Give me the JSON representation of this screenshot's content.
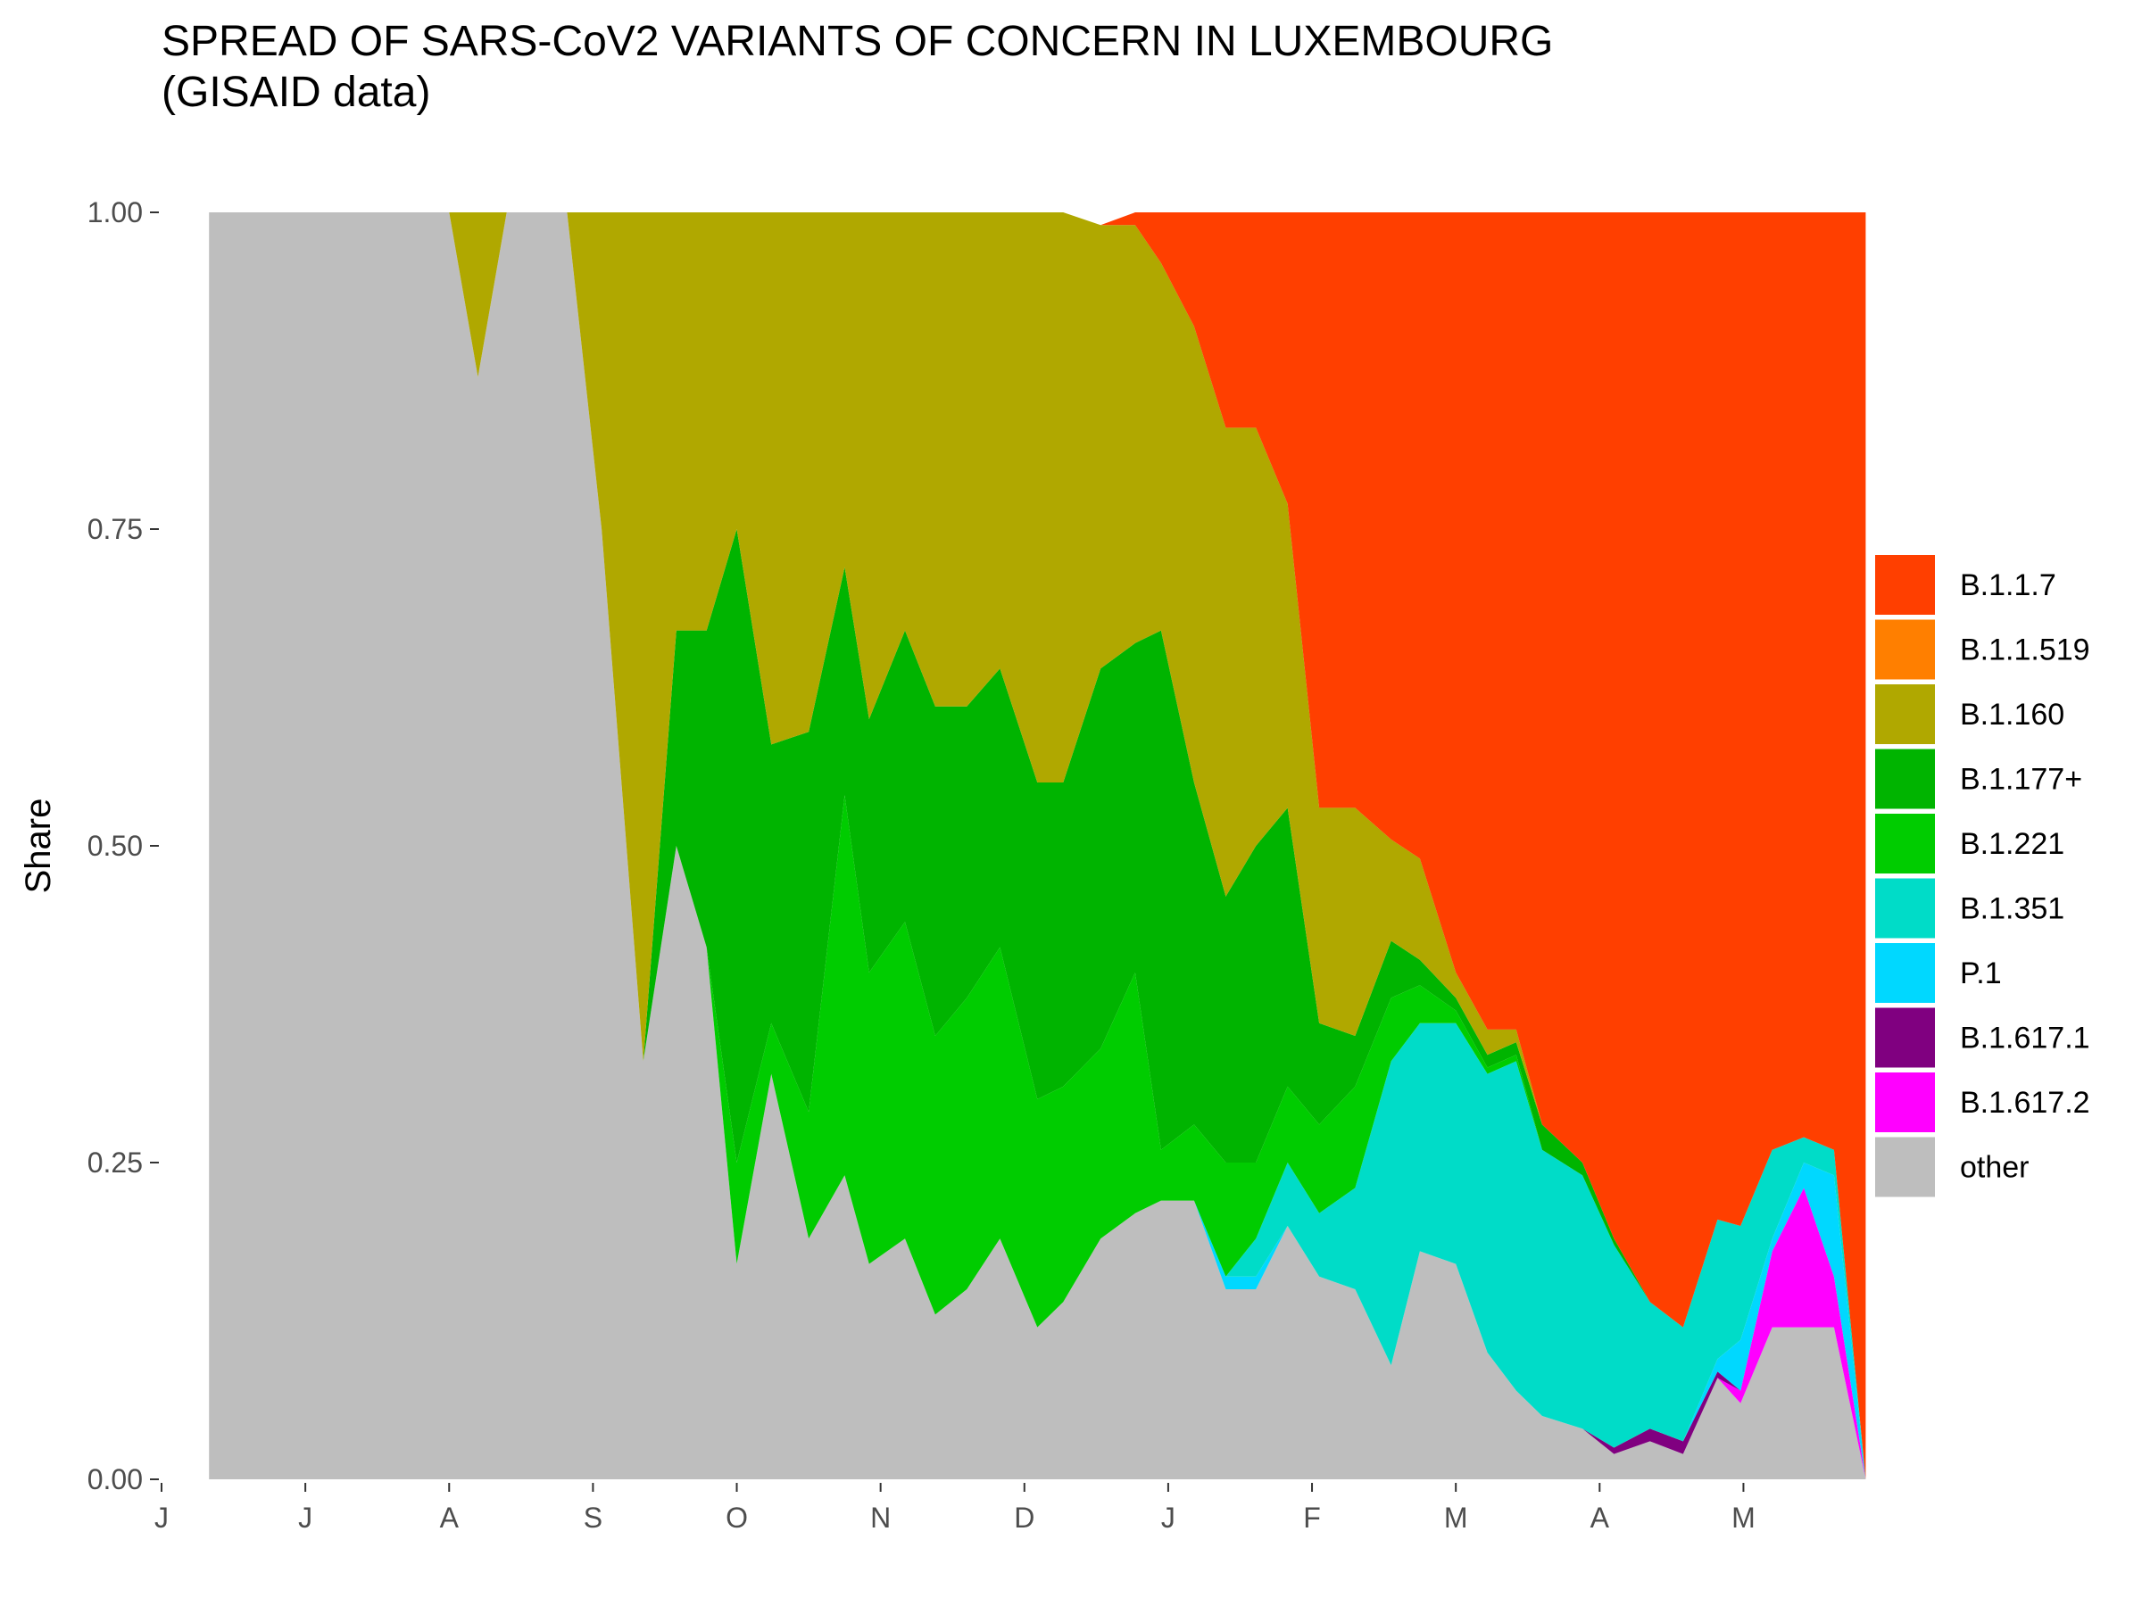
{
  "title_line1": "SPREAD OF SARS-CoV2 VARIANTS OF CONCERN IN LUXEMBOURG",
  "title_line2": "(GISAID data)",
  "chart_data": {
    "type": "area",
    "stacked": true,
    "normalized": true,
    "title": "SPREAD OF SARS-CoV2 VARIANTS OF CONCERN IN LUXEMBOURG (GISAID data)",
    "xlabel": "",
    "ylabel": "Share",
    "ylim": [
      0,
      1
    ],
    "xlim": [
      0,
      11.5
    ],
    "y_ticks": [
      {
        "value": 0.0,
        "label": "0.00"
      },
      {
        "value": 0.25,
        "label": "0.25"
      },
      {
        "value": 0.5,
        "label": "0.50"
      },
      {
        "value": 0.75,
        "label": "0.75"
      },
      {
        "value": 1.0,
        "label": "1.00"
      }
    ],
    "x_ticks": [
      {
        "value": 0,
        "label": "J"
      },
      {
        "value": 1,
        "label": "J"
      },
      {
        "value": 2,
        "label": "A"
      },
      {
        "value": 3,
        "label": "S"
      },
      {
        "value": 4,
        "label": "O"
      },
      {
        "value": 5,
        "label": "N"
      },
      {
        "value": 6,
        "label": "D"
      },
      {
        "value": 7,
        "label": "J"
      },
      {
        "value": 8,
        "label": "F"
      },
      {
        "value": 9,
        "label": "M"
      },
      {
        "value": 10,
        "label": "A"
      },
      {
        "value": 11,
        "label": "M"
      }
    ],
    "x": [
      0.33,
      2.0,
      2.2,
      2.4,
      2.82,
      3.06,
      3.35,
      3.58,
      3.79,
      4.0,
      4.24,
      4.5,
      4.75,
      4.92,
      5.17,
      5.38,
      5.6,
      5.83,
      6.09,
      6.27,
      6.53,
      6.77,
      6.95,
      7.18,
      7.4,
      7.61,
      7.83,
      8.05,
      8.3,
      8.55,
      8.75,
      9.0,
      9.22,
      9.42,
      9.6,
      9.88,
      10.1,
      10.35,
      10.58,
      10.82,
      10.98,
      11.2,
      11.42,
      11.63,
      11.85
    ],
    "series": [
      {
        "name": "other",
        "color": "#bebebe",
        "values": [
          1,
          1,
          0.87,
          1,
          1,
          0.75,
          0.33,
          0.5,
          0.42,
          0.17,
          0.32,
          0.19,
          0.24,
          0.17,
          0.19,
          0.13,
          0.15,
          0.19,
          0.12,
          0.14,
          0.19,
          0.21,
          0.22,
          0.22,
          0.15,
          0.15,
          0.2,
          0.16,
          0.15,
          0.09,
          0.18,
          0.17,
          0.1,
          0.07,
          0.05,
          0.04,
          0.02,
          0.03,
          0.02,
          0.08,
          0.06,
          0.12,
          0.12,
          0.12,
          0.0
        ]
      },
      {
        "name": "B.1.617.2",
        "color": "#ff00ff",
        "values": [
          0,
          0,
          0,
          0,
          0,
          0,
          0,
          0,
          0,
          0,
          0,
          0,
          0,
          0,
          0,
          0,
          0,
          0,
          0,
          0,
          0,
          0,
          0,
          0,
          0,
          0,
          0,
          0,
          0,
          0,
          0,
          0,
          0,
          0,
          0,
          0,
          0,
          0,
          0,
          0,
          0.01,
          0.06,
          0.11,
          0.04,
          0.0
        ]
      },
      {
        "name": "B.1.617.1",
        "color": "#800080",
        "values": [
          0,
          0,
          0,
          0,
          0,
          0,
          0,
          0,
          0,
          0,
          0,
          0,
          0,
          0,
          0,
          0,
          0,
          0,
          0,
          0,
          0,
          0,
          0,
          0,
          0,
          0,
          0,
          0,
          0,
          0,
          0,
          0,
          0,
          0,
          0,
          0,
          0.005,
          0.01,
          0.01,
          0.005,
          0.0,
          0.0,
          0.0,
          0.0,
          0.0
        ]
      },
      {
        "name": "P.1",
        "color": "#00d8ff",
        "values": [
          0,
          0,
          0,
          0,
          0,
          0,
          0,
          0,
          0,
          0,
          0,
          0,
          0,
          0,
          0,
          0,
          0,
          0,
          0,
          0,
          0,
          0,
          0,
          0,
          0.01,
          0.01,
          0,
          0,
          0,
          0,
          0,
          0,
          0,
          0,
          0,
          0,
          0,
          0,
          0,
          0.01,
          0.04,
          0.01,
          0.02,
          0.08,
          0.0
        ]
      },
      {
        "name": "B.1.351",
        "color": "#00dcc8",
        "values": [
          0,
          0,
          0,
          0,
          0,
          0,
          0,
          0,
          0,
          0,
          0,
          0,
          0,
          0,
          0,
          0,
          0,
          0,
          0,
          0,
          0,
          0,
          0,
          0,
          0.0,
          0.03,
          0.05,
          0.05,
          0.08,
          0.24,
          0.18,
          0.19,
          0.22,
          0.26,
          0.21,
          0.2,
          0.16,
          0.1,
          0.09,
          0.11,
          0.09,
          0.07,
          0.02,
          0.02,
          0.0
        ]
      },
      {
        "name": "B.1.221",
        "color": "#00cc00",
        "values": [
          0,
          0,
          0,
          0,
          0,
          0,
          0,
          0,
          0,
          0.08,
          0.04,
          0.1,
          0.3,
          0.23,
          0.25,
          0.22,
          0.23,
          0.23,
          0.18,
          0.17,
          0.15,
          0.19,
          0.04,
          0.06,
          0.09,
          0.06,
          0.06,
          0.07,
          0.08,
          0.05,
          0.03,
          0.01,
          0.005,
          0.005,
          0.0,
          0.0,
          0.0,
          0.0,
          0.0,
          0.0,
          0.0,
          0.0,
          0.0,
          0.0,
          0.0
        ]
      },
      {
        "name": "B.1.177+",
        "color": "#00b400",
        "values": [
          0,
          0,
          0,
          0,
          0,
          0,
          0,
          0.17,
          0.25,
          0.5,
          0.22,
          0.3,
          0.18,
          0.2,
          0.23,
          0.26,
          0.23,
          0.22,
          0.25,
          0.24,
          0.3,
          0.26,
          0.41,
          0.27,
          0.21,
          0.25,
          0.22,
          0.08,
          0.04,
          0.045,
          0.02,
          0.01,
          0.01,
          0.01,
          0.02,
          0.01,
          0.005,
          0.0,
          0.0,
          0.0,
          0.0,
          0.0,
          0.0,
          0.0,
          0.0
        ]
      },
      {
        "name": "B.1.160",
        "color": "#b0a800",
        "values": [
          0,
          0,
          0.13,
          0,
          0,
          0.25,
          0.67,
          0.33,
          0.33,
          0.25,
          0.46,
          0.41,
          0.28,
          0.4,
          0.33,
          0.39,
          0.39,
          0.36,
          0.45,
          0.45,
          0.35,
          0.33,
          0.29,
          0.36,
          0.37,
          0.33,
          0.24,
          0.17,
          0.18,
          0.08,
          0.08,
          0.02,
          0.02,
          0.01,
          0.0,
          0.0,
          0.0,
          0.0,
          0.0,
          0.0,
          0.0,
          0.0,
          0.0,
          0.0,
          0.0
        ]
      },
      {
        "name": "B.1.1.519",
        "color": "#ff7f00",
        "values": [
          0,
          0,
          0,
          0,
          0,
          0,
          0,
          0,
          0,
          0,
          0,
          0,
          0,
          0,
          0,
          0,
          0,
          0,
          0,
          0,
          0,
          0,
          0,
          0,
          0,
          0,
          0,
          0,
          0,
          0,
          0,
          0,
          0,
          0,
          0,
          0,
          0,
          0,
          0,
          0,
          0,
          0,
          0,
          0,
          0
        ]
      },
      {
        "name": "B.1.1.7",
        "color": "#ff3f00",
        "values": [
          0,
          0,
          0,
          0,
          0,
          0,
          0,
          0,
          0,
          0,
          0,
          0,
          0,
          0,
          0,
          0,
          0,
          0,
          0,
          0,
          0,
          0.01,
          0.04,
          0.09,
          0.18,
          0.22,
          0.37,
          0.54,
          0.55,
          0.54,
          0.58,
          0.6,
          0.645,
          0.655,
          0.72,
          0.75,
          0.81,
          0.86,
          0.88,
          0.795,
          0.8,
          0.74,
          0.73,
          0.74,
          1.0
        ]
      }
    ],
    "legend_order": [
      "B.1.1.7",
      "B.1.1.519",
      "B.1.160",
      "B.1.177+",
      "B.1.221",
      "B.1.351",
      "P.1",
      "B.1.617.1",
      "B.1.617.2",
      "other"
    ],
    "legend_position": "right",
    "grid": false
  }
}
